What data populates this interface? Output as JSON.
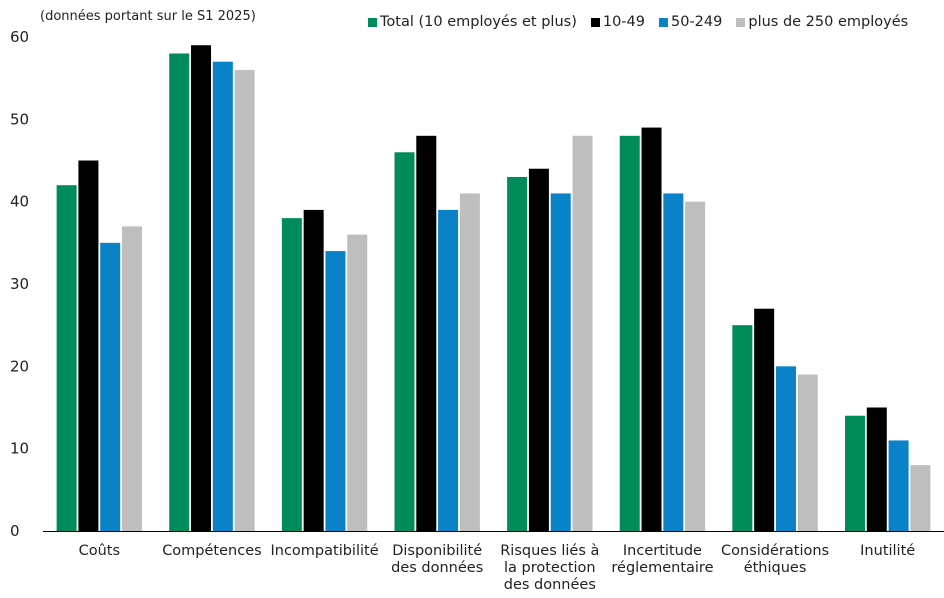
{
  "chart_data": {
    "type": "bar",
    "note": "(données portant sur le S1 2025)",
    "categories": [
      [
        "Coûts"
      ],
      [
        "Compétences"
      ],
      [
        "Incompatibilité"
      ],
      [
        "Disponibilité",
        "des données"
      ],
      [
        "Risques liés à",
        "la protection",
        "des données"
      ],
      [
        "Incertitude",
        "réglementaire"
      ],
      [
        "Considérations",
        "éthiques"
      ],
      [
        "Inutilité"
      ]
    ],
    "series": [
      {
        "name": "Total (10 employés et plus)",
        "color": "#008c5a",
        "values": [
          42,
          58,
          38,
          46,
          43,
          48,
          25,
          14
        ]
      },
      {
        "name": "10-49",
        "color": "#000000",
        "values": [
          45,
          59,
          39,
          48,
          44,
          49,
          27,
          15
        ]
      },
      {
        "name": "50-249",
        "color": "#0a82c8",
        "values": [
          35,
          57,
          34,
          39,
          41,
          41,
          20,
          11
        ]
      },
      {
        "name": "plus de  250 employés",
        "color": "#bebebe",
        "values": [
          37,
          56,
          36,
          41,
          48,
          40,
          19,
          8
        ]
      }
    ],
    "yticks": [
      "0",
      "10",
      "20",
      "30",
      "40",
      "50",
      "60"
    ],
    "ylim": [
      0,
      60
    ],
    "grid": false,
    "legend_position": "top-right"
  }
}
